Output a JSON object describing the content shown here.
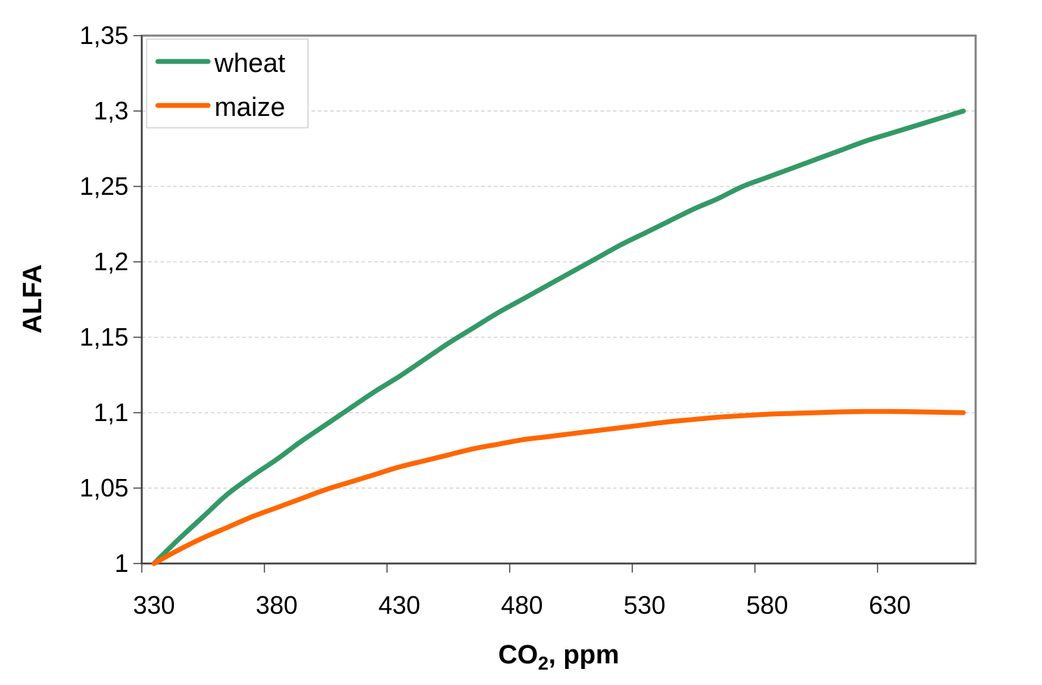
{
  "chart_data": {
    "type": "line",
    "title": "",
    "xlabel": "CO",
    "xlabel_subscript": "2",
    "xlabel_suffix": ", ppm",
    "ylabel": "ALFA",
    "ylim": [
      1,
      1.35
    ],
    "yticks": [
      {
        "value": 1,
        "label": "1"
      },
      {
        "value": 1.05,
        "label": "1,05"
      },
      {
        "value": 1.1,
        "label": "1,1"
      },
      {
        "value": 1.15,
        "label": "1,15"
      },
      {
        "value": 1.2,
        "label": "1,2"
      },
      {
        "value": 1.25,
        "label": "1,25"
      },
      {
        "value": 1.3,
        "label": "1,3"
      },
      {
        "value": 1.35,
        "label": "1,35"
      }
    ],
    "xtick_labels": [
      "330",
      "380",
      "430",
      "480",
      "530",
      "580",
      "630"
    ],
    "grid": "horizontal-dashed",
    "legend_position": "top-left",
    "categories": [
      330,
      340,
      350,
      360,
      370,
      380,
      390,
      400,
      410,
      420,
      430,
      440,
      450,
      460,
      470,
      480,
      490,
      500,
      510,
      520,
      530,
      540,
      550,
      560,
      570,
      580,
      590,
      600,
      610,
      620,
      630,
      640,
      650,
      660
    ],
    "series": [
      {
        "name": "wheat",
        "color": "#339966",
        "values": [
          1.0,
          1.016,
          1.031,
          1.046,
          1.058,
          1.069,
          1.081,
          1.092,
          1.103,
          1.114,
          1.124,
          1.135,
          1.146,
          1.156,
          1.166,
          1.175,
          1.184,
          1.193,
          1.202,
          1.211,
          1.219,
          1.227,
          1.235,
          1.242,
          1.25,
          1.256,
          1.262,
          1.268,
          1.274,
          1.28,
          1.285,
          1.29,
          1.295,
          1.3
        ]
      },
      {
        "name": "maize",
        "color": "#FF6600",
        "values": [
          1.0,
          1.009,
          1.017,
          1.024,
          1.031,
          1.037,
          1.043,
          1.049,
          1.054,
          1.059,
          1.064,
          1.068,
          1.072,
          1.076,
          1.079,
          1.082,
          1.084,
          1.086,
          1.088,
          1.09,
          1.092,
          1.094,
          1.0955,
          1.097,
          1.098,
          1.099,
          1.0995,
          1.1,
          1.1005,
          1.1008,
          1.1008,
          1.1006,
          1.1003,
          1.1
        ]
      }
    ]
  }
}
